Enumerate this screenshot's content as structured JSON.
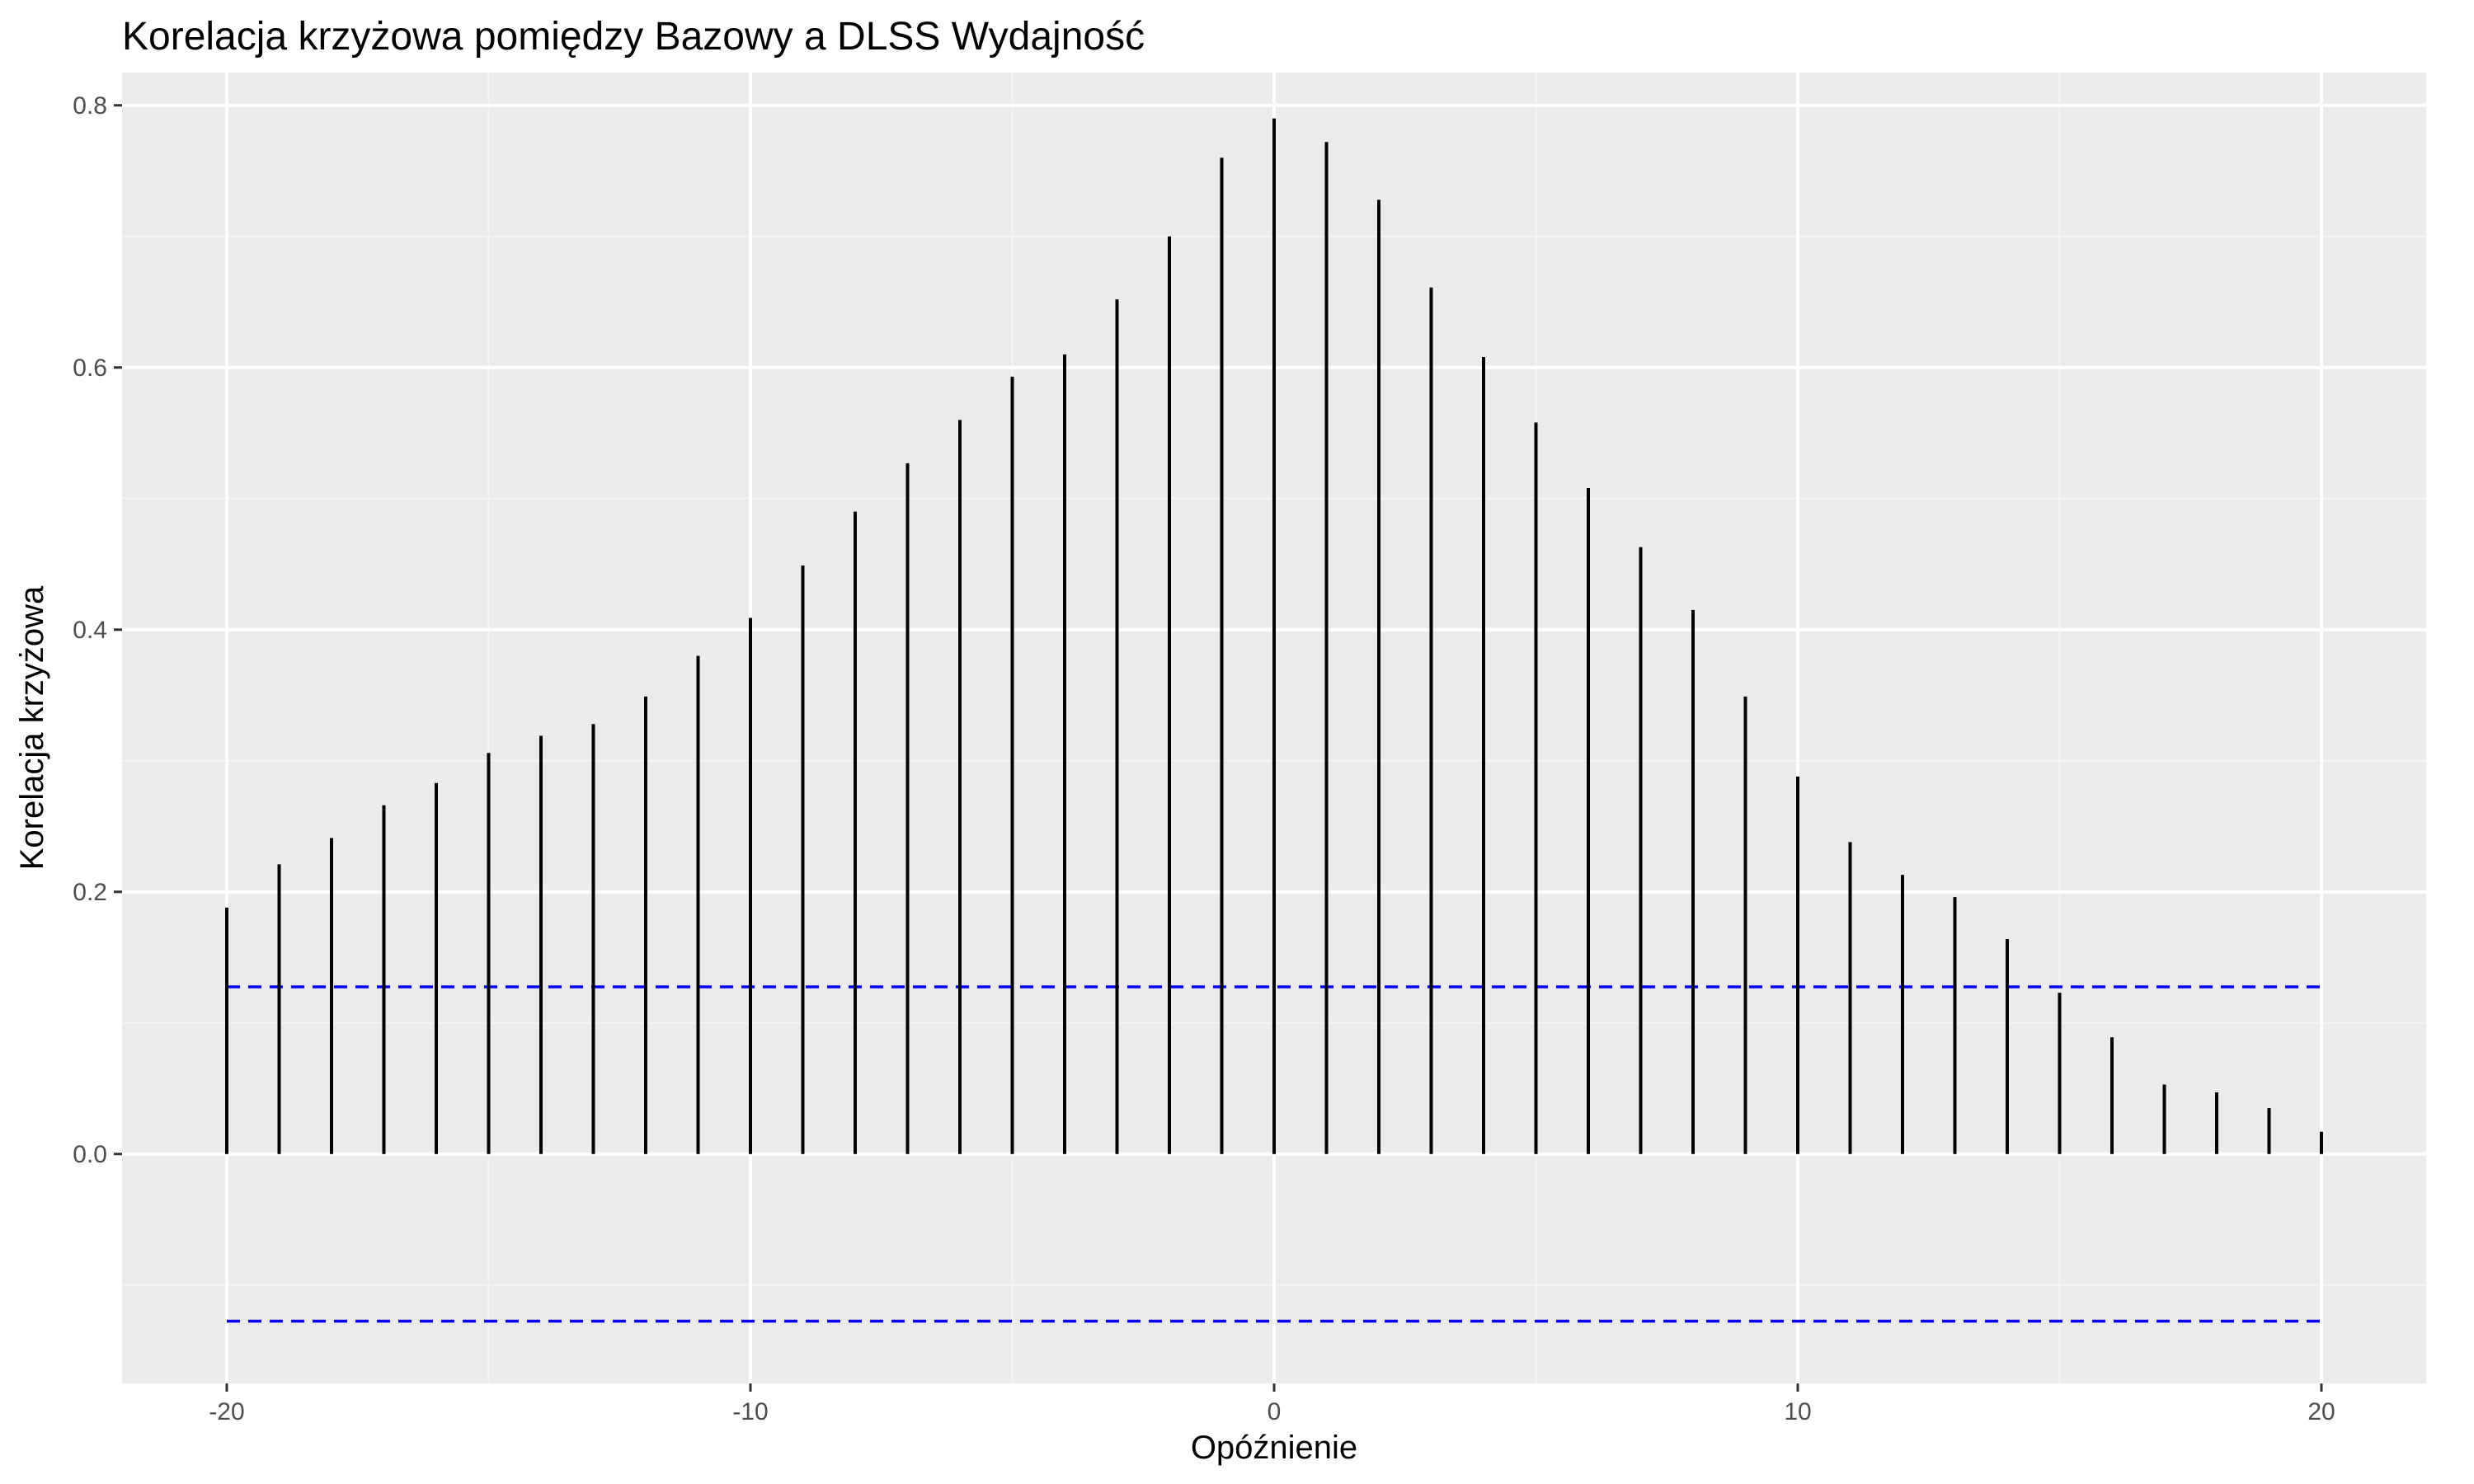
{
  "chart_data": {
    "type": "bar",
    "subtype": "lollipop-segments",
    "title": "Korelacja krzyżowa pomiędzy Bazowy a DLSS Wydajność",
    "xlabel": "Opóźnienie",
    "ylabel": "Korelacja krzyżowa",
    "xlim": [
      -22,
      22
    ],
    "ylim": [
      -0.175,
      0.825
    ],
    "x_ticks": [
      -20,
      -10,
      0,
      10,
      20
    ],
    "x_tick_labels": [
      "-20",
      "-10",
      "0",
      "10",
      "20"
    ],
    "y_ticks": [
      0.0,
      0.2,
      0.4,
      0.6,
      0.8
    ],
    "y_tick_labels": [
      "0.0",
      "0.2",
      "0.4",
      "0.6",
      "0.8"
    ],
    "grid": true,
    "lags": [
      -20,
      -19,
      -18,
      -17,
      -16,
      -15,
      -14,
      -13,
      -12,
      -11,
      -10,
      -9,
      -8,
      -7,
      -6,
      -5,
      -4,
      -3,
      -2,
      -1,
      0,
      1,
      2,
      3,
      4,
      5,
      6,
      7,
      8,
      9,
      10,
      11,
      12,
      13,
      14,
      15,
      16,
      17,
      18,
      19,
      20
    ],
    "values": [
      0.188,
      0.221,
      0.241,
      0.266,
      0.283,
      0.306,
      0.319,
      0.328,
      0.349,
      0.38,
      0.409,
      0.449,
      0.49,
      0.527,
      0.56,
      0.593,
      0.61,
      0.652,
      0.7,
      0.76,
      0.79,
      0.772,
      0.728,
      0.661,
      0.608,
      0.558,
      0.508,
      0.463,
      0.415,
      0.349,
      0.288,
      0.238,
      0.213,
      0.196,
      0.164,
      0.123,
      0.089,
      0.053,
      0.047,
      0.035,
      0.017
    ],
    "confidence_bounds": [
      0.1275,
      -0.1275
    ],
    "colors": {
      "panel_background": "#ebebeb",
      "grid_major": "#ffffff",
      "grid_minor": "#f5f5f5",
      "segments": "#000000",
      "confidence_lines": "#0000ff"
    }
  }
}
